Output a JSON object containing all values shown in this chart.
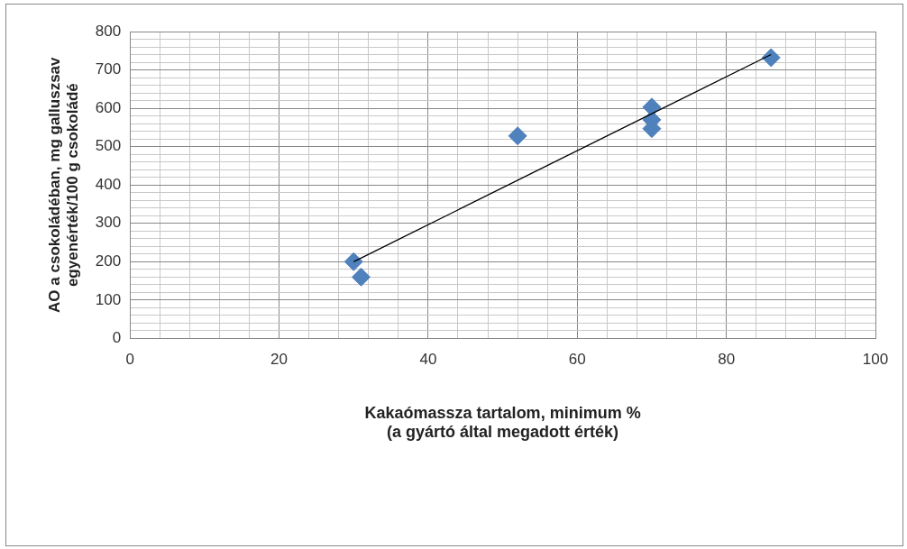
{
  "chart_data": {
    "type": "scatter",
    "xlabel": "Kakaómassza tartalom, minimum %\n(a gyártó által megadott érték)",
    "ylabel": "AO a csokoládéban, mg galluszsav\negyenérték/100 g csokoládé",
    "series": [
      {
        "color": "#4f81bd",
        "marker": "diamond",
        "x": [
          30,
          31,
          52,
          70,
          70,
          70,
          86
        ],
        "values": [
          200,
          160,
          528,
          603,
          570,
          547,
          732
        ]
      },
      {
        "type": "line",
        "color": "#000000",
        "marker": "none",
        "x": [
          30,
          86
        ],
        "values": [
          200,
          740
        ]
      }
    ],
    "xlim": [
      0,
      100
    ],
    "ylim": [
      0,
      800
    ],
    "xticks": [
      0,
      {
        "value": 4,
        "label": null
      },
      {
        "value": 8,
        "label": null
      },
      {
        "value": 12,
        "label": null
      },
      {
        "value": 16,
        "label": null
      },
      20,
      {
        "value": 24,
        "label": null
      },
      {
        "value": 28,
        "label": null
      },
      {
        "value": 32,
        "label": null
      },
      {
        "value": 36,
        "label": null
      },
      40,
      {
        "value": 44,
        "label": null
      },
      {
        "value": 48,
        "label": null
      },
      {
        "value": 52,
        "label": null
      },
      {
        "value": 56,
        "label": null
      },
      60,
      {
        "value": 64,
        "label": null
      },
      {
        "value": 68,
        "label": null
      },
      {
        "value": 72,
        "label": null
      },
      {
        "value": 76,
        "label": null
      },
      80,
      {
        "value": 84,
        "label": null
      },
      {
        "value": 88,
        "label": null
      },
      {
        "value": 92,
        "label": null
      },
      {
        "value": 96,
        "label": null
      },
      100
    ],
    "yticks": [
      0,
      {
        "value": 20,
        "label": null
      },
      {
        "value": 40,
        "label": null
      },
      {
        "value": 60,
        "label": null
      },
      {
        "value": 80,
        "label": null
      },
      100,
      {
        "value": 120,
        "label": null
      },
      {
        "value": 140,
        "label": null
      },
      {
        "value": 160,
        "label": null
      },
      {
        "value": 180,
        "label": null
      },
      200,
      {
        "value": 220,
        "label": null
      },
      {
        "value": 240,
        "label": null
      },
      {
        "value": 260,
        "label": null
      },
      {
        "value": 280,
        "label": null
      },
      300,
      {
        "value": 320,
        "label": null
      },
      {
        "value": 340,
        "label": null
      },
      {
        "value": 360,
        "label": null
      },
      {
        "value": 380,
        "label": null
      },
      400,
      {
        "value": 420,
        "label": null
      },
      {
        "value": 440,
        "label": null
      },
      {
        "value": 460,
        "label": null
      },
      {
        "value": 480,
        "label": null
      },
      500,
      {
        "value": 520,
        "label": null
      },
      {
        "value": 540,
        "label": null
      },
      {
        "value": 560,
        "label": null
      },
      {
        "value": 580,
        "label": null
      },
      600,
      {
        "value": 620,
        "label": null
      },
      {
        "value": 640,
        "label": null
      },
      {
        "value": 660,
        "label": null
      },
      {
        "value": 680,
        "label": null
      },
      700,
      {
        "value": 720,
        "label": null
      },
      {
        "value": 740,
        "label": null
      },
      {
        "value": 760,
        "label": null
      },
      {
        "value": 780,
        "label": null
      },
      800
    ],
    "grid": true,
    "legend": false
  }
}
